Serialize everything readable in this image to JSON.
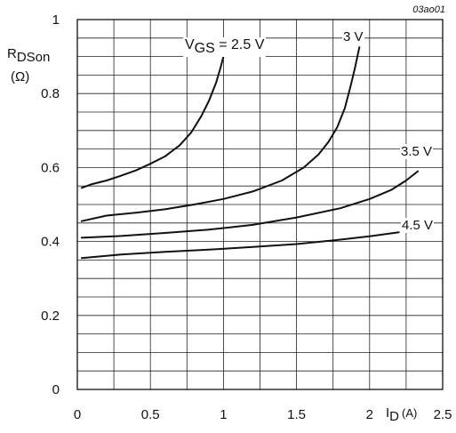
{
  "figure_id": "03ao01",
  "chart_data": {
    "type": "line",
    "ylabel": {
      "main": "R",
      "sub": "DSon",
      "unit": "(Ω)"
    },
    "xlabel": {
      "main": "I",
      "sub": "D",
      "unit": "(A)"
    },
    "xlim": [
      0,
      2.5
    ],
    "ylim": [
      0,
      1.0
    ],
    "x_ticks": [
      "0",
      "0.5",
      "1",
      "1.5",
      "2",
      "2.5"
    ],
    "y_ticks": [
      "0",
      "0.2",
      "0.4",
      "0.6",
      "0.8",
      "1"
    ],
    "grid": true,
    "series": [
      {
        "name": "2.5 V",
        "label_prefix": "V",
        "label_sub": "GS",
        "label_text": " = 2.5 V",
        "x": [
          0.03,
          0.1,
          0.2,
          0.3,
          0.4,
          0.5,
          0.6,
          0.7,
          0.78,
          0.85,
          0.9,
          0.95,
          0.98,
          1.0,
          1.03
        ],
        "y": [
          0.545,
          0.555,
          0.565,
          0.578,
          0.592,
          0.61,
          0.63,
          0.66,
          0.695,
          0.74,
          0.78,
          0.83,
          0.87,
          0.9,
          0.93
        ]
      },
      {
        "name": "3 V",
        "x": [
          0.03,
          0.2,
          0.4,
          0.6,
          0.8,
          1.0,
          1.2,
          1.4,
          1.55,
          1.65,
          1.72,
          1.78,
          1.83,
          1.87,
          1.9,
          1.93
        ],
        "y": [
          0.455,
          0.47,
          0.478,
          0.487,
          0.5,
          0.515,
          0.535,
          0.565,
          0.6,
          0.635,
          0.67,
          0.71,
          0.76,
          0.82,
          0.87,
          0.925
        ]
      },
      {
        "name": "3.5 V",
        "x": [
          0.03,
          0.3,
          0.6,
          0.9,
          1.2,
          1.5,
          1.8,
          2.0,
          2.15,
          2.25,
          2.33
        ],
        "y": [
          0.41,
          0.415,
          0.423,
          0.432,
          0.445,
          0.465,
          0.49,
          0.515,
          0.54,
          0.565,
          0.59
        ]
      },
      {
        "name": "4.5 V",
        "x": [
          0.03,
          0.3,
          0.6,
          0.9,
          1.2,
          1.5,
          1.8,
          2.0,
          2.2
        ],
        "y": [
          0.355,
          0.365,
          0.372,
          0.378,
          0.385,
          0.393,
          0.405,
          0.414,
          0.425
        ]
      }
    ]
  }
}
